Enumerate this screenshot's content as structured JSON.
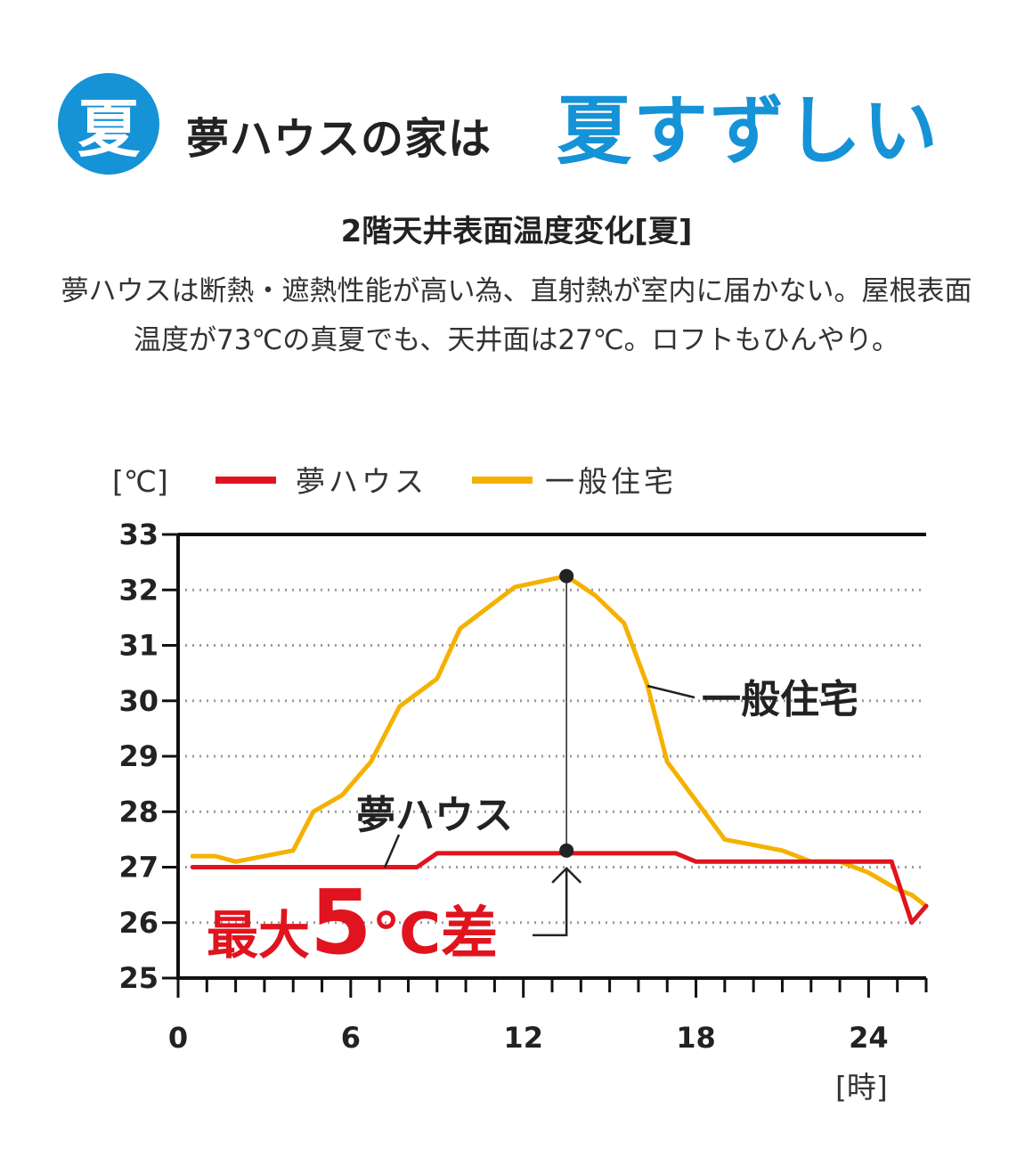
{
  "header": {
    "badge": "夏",
    "headline": "夢ハウスの家は",
    "headline_accent": "夏すずしい"
  },
  "chart_heading": "2階天井表面温度変化[夏]",
  "description": "夢ハウスは断熱・遮熱性能が高い為、直射熱が室内に届かない。屋根表面温度が73℃の真夏でも、天井面は27℃。ロフトもひんやり。",
  "colors": {
    "accent": "#1692d6",
    "yume_house": "#e0141e",
    "general_house": "#f5b100",
    "grid": "#9a9a9a"
  },
  "chart_data": {
    "type": "line",
    "y_unit": "[℃]",
    "x_unit": "[時]",
    "ylim": [
      25,
      33
    ],
    "xlim": [
      0,
      26
    ],
    "y_ticks": [
      25,
      26,
      27,
      28,
      29,
      30,
      31,
      32,
      33
    ],
    "x_ticks": [
      0,
      6,
      12,
      18,
      24
    ],
    "grid": true,
    "legend": "top",
    "series": [
      {
        "name": "夢ハウス",
        "color": "#e0141e",
        "x": [
          0.5,
          8.3,
          9,
          17.3,
          18,
          24.8,
          25.5,
          26
        ],
        "y": [
          27.0,
          27.0,
          27.25,
          27.25,
          27.1,
          27.1,
          26.0,
          26.3
        ]
      },
      {
        "name": "一般住宅",
        "color": "#f5b100",
        "x": [
          0.5,
          1.3,
          2,
          3,
          4,
          4.7,
          5.7,
          6.7,
          7.7,
          9,
          9.8,
          11.7,
          13.5,
          14.5,
          15.5,
          16.3,
          17,
          18,
          19,
          20,
          21,
          22,
          23,
          24,
          25,
          25.5,
          26
        ],
        "y": [
          27.2,
          27.2,
          27.1,
          27.2,
          27.3,
          28.0,
          28.3,
          28.9,
          29.9,
          30.4,
          31.3,
          32.05,
          32.25,
          31.9,
          31.4,
          30.3,
          28.9,
          28.2,
          27.5,
          27.4,
          27.3,
          27.1,
          27.1,
          26.9,
          26.6,
          26.5,
          26.3
        ]
      }
    ],
    "annotations": {
      "general_label": "一般住宅",
      "yume_label": "夢ハウス",
      "max_diff_prefix": "最大",
      "max_diff_number": "5",
      "max_diff_suffix": "℃差",
      "marker_x": 13.5,
      "marker_top_y": 32.25,
      "marker_bottom_y": 27.3
    }
  }
}
